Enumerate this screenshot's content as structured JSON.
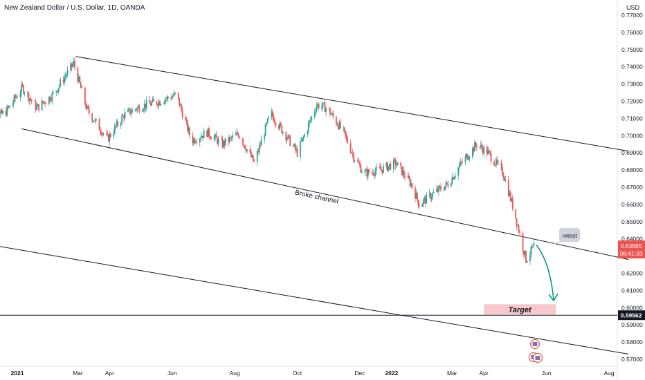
{
  "chart_data": {
    "type": "candlestick",
    "title": "New Zealand Dollar / U.S. Dollar, 1D, OANDA",
    "currency": "USD",
    "colors": {
      "up": "#26a69a",
      "down": "#ef5350",
      "arrow": "#089981",
      "target_fill": "#f8c8cc",
      "price_tag": "#ef5350"
    },
    "x_axis": {
      "range": [
        "2020-12-01",
        "2022-08-15"
      ],
      "ticks": [
        {
          "label": "2021",
          "date": "2021-01-01"
        },
        {
          "label": "Mar",
          "date": "2021-03-01"
        },
        {
          "label": "Apr",
          "date": "2021-04-01"
        },
        {
          "label": "Jun",
          "date": "2021-06-01"
        },
        {
          "label": "Aug",
          "date": "2021-08-01"
        },
        {
          "label": "Oct",
          "date": "2021-10-01"
        },
        {
          "label": "Dec",
          "date": "2021-12-01"
        },
        {
          "label": "2022",
          "date": "2022-01-01"
        },
        {
          "label": "Mar",
          "date": "2022-03-01"
        },
        {
          "label": "Apr",
          "date": "2022-04-01"
        },
        {
          "label": "Jun",
          "date": "2022-06-01"
        },
        {
          "label": "Aug",
          "date": "2022-08-01"
        }
      ]
    },
    "y_axis": {
      "range": [
        0.566,
        0.779
      ],
      "ticks": [
        "0.77000",
        "0.76000",
        "0.75000",
        "0.74000",
        "0.73000",
        "0.72000",
        "0.71000",
        "0.70000",
        "0.69000",
        "0.68000",
        "0.67000",
        "0.66000",
        "0.65000",
        "0.64000",
        "0.63000",
        "0.62000",
        "0.61000",
        "0.60000",
        "0.59000",
        "0.58000",
        "0.57000"
      ]
    },
    "current_price": {
      "value": 0.63585,
      "label": "0.63585",
      "countdown": "08:41:33"
    },
    "target_level": {
      "value": 0.59562,
      "label": "0.59562"
    },
    "price_path": [
      [
        "2020-12-01",
        0.71
      ],
      [
        "2020-12-20",
        0.713
      ],
      [
        "2021-01-06",
        0.728
      ],
      [
        "2021-01-20",
        0.716
      ],
      [
        "2021-02-05",
        0.724
      ],
      [
        "2021-02-25",
        0.742
      ],
      [
        "2021-03-10",
        0.715
      ],
      [
        "2021-03-30",
        0.698
      ],
      [
        "2021-04-15",
        0.712
      ],
      [
        "2021-05-01",
        0.717
      ],
      [
        "2021-05-20",
        0.72
      ],
      [
        "2021-06-05",
        0.724
      ],
      [
        "2021-06-20",
        0.697
      ],
      [
        "2021-07-05",
        0.702
      ],
      [
        "2021-07-20",
        0.695
      ],
      [
        "2021-08-05",
        0.701
      ],
      [
        "2021-08-20",
        0.684
      ],
      [
        "2021-09-05",
        0.713
      ],
      [
        "2021-09-20",
        0.7
      ],
      [
        "2021-10-01",
        0.69
      ],
      [
        "2021-10-20",
        0.718
      ],
      [
        "2021-10-30",
        0.716
      ],
      [
        "2021-11-15",
        0.702
      ],
      [
        "2021-11-25",
        0.688
      ],
      [
        "2021-12-05",
        0.678
      ],
      [
        "2021-12-20",
        0.68
      ],
      [
        "2022-01-05",
        0.684
      ],
      [
        "2022-01-20",
        0.672
      ],
      [
        "2022-01-28",
        0.66
      ],
      [
        "2022-02-10",
        0.666
      ],
      [
        "2022-02-25",
        0.672
      ],
      [
        "2022-03-10",
        0.684
      ],
      [
        "2022-03-25",
        0.695
      ],
      [
        "2022-04-05",
        0.69
      ],
      [
        "2022-04-20",
        0.678
      ],
      [
        "2022-05-01",
        0.655
      ],
      [
        "2022-05-12",
        0.628
      ],
      [
        "2022-05-20",
        0.63585
      ]
    ],
    "annotations": {
      "channel_label": "Broke channel",
      "retest_label": "retest",
      "target_label": "Target",
      "channel_upper": [
        [
          "2021-02-27",
          0.746
        ],
        [
          "2022-08-20",
          0.691
        ]
      ],
      "channel_lower": [
        [
          "2021-01-05",
          0.704
        ],
        [
          "2022-08-20",
          0.628
        ]
      ],
      "channel_outer": [
        [
          "2020-12-01",
          0.637
        ],
        [
          "2022-08-20",
          0.573
        ]
      ],
      "target_zone": {
        "from": "2022-04-01",
        "to": "2022-06-10",
        "low": 0.596,
        "high": 0.602
      },
      "arrow": {
        "from": [
          "2022-05-22",
          0.6365
        ],
        "to": [
          "2022-06-08",
          0.6045
        ]
      }
    }
  }
}
